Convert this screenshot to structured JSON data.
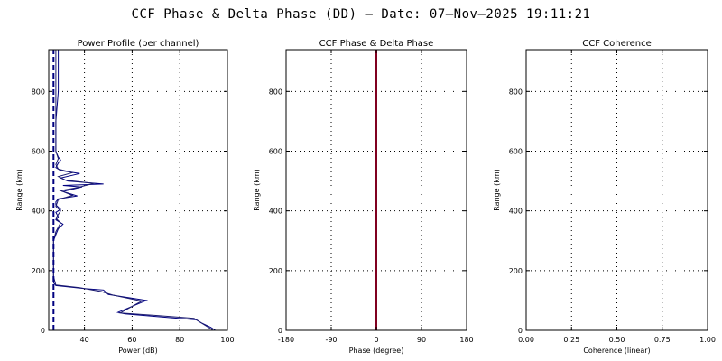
{
  "title": "CCF Phase & Delta Phase (DD) — Date: 07—Nov—2025 19:11:21",
  "chart_data": [
    {
      "type": "line",
      "title": "Power Profile (per channel)",
      "xlabel": "Power (dB)",
      "ylabel": "Range (km)",
      "xlim": [
        25,
        100
      ],
      "ylim": [
        0,
        940
      ],
      "xticks": [
        40,
        60,
        80,
        100
      ],
      "yticks": [
        0,
        200,
        400,
        600,
        800
      ],
      "grid": true,
      "colors": [
        "#000080",
        "#1a1a6e"
      ],
      "series": [
        {
          "style": "solid",
          "points": [
            [
              95,
              0
            ],
            [
              93,
              10
            ],
            [
              89,
              25
            ],
            [
              87,
              35
            ],
            [
              72,
              45
            ],
            [
              57,
              55
            ],
            [
              54,
              60
            ],
            [
              66,
              100
            ],
            [
              50,
              120
            ],
            [
              48,
              135
            ],
            [
              40,
              140
            ],
            [
              28,
              150
            ],
            [
              27,
              160
            ],
            [
              27,
              200
            ],
            [
              27,
              300
            ],
            [
              28,
              320
            ],
            [
              29,
              340
            ],
            [
              31,
              355
            ],
            [
              28,
              370
            ],
            [
              29,
              380
            ],
            [
              28,
              395
            ],
            [
              30,
              405
            ],
            [
              28,
              420
            ],
            [
              28,
              430
            ],
            [
              29,
              440
            ],
            [
              37,
              450
            ],
            [
              31,
              465
            ],
            [
              39,
              480
            ],
            [
              31,
              485
            ],
            [
              48,
              490
            ],
            [
              33,
              500
            ],
            [
              30,
              510
            ],
            [
              38,
              525
            ],
            [
              30,
              535
            ],
            [
              28,
              545
            ],
            [
              29,
              560
            ],
            [
              30,
              570
            ],
            [
              29,
              580
            ],
            [
              28,
              600
            ],
            [
              28,
              700
            ],
            [
              29,
              800
            ],
            [
              29,
              880
            ],
            [
              29,
              940
            ]
          ]
        },
        {
          "style": "solid",
          "points": [
            [
              94,
              0
            ],
            [
              88,
              30
            ],
            [
              86,
              40
            ],
            [
              70,
              50
            ],
            [
              55,
              58
            ],
            [
              64,
              98
            ],
            [
              52,
              118
            ],
            [
              47,
              130
            ],
            [
              38,
              143
            ],
            [
              28,
              152
            ],
            [
              27,
              180
            ],
            [
              27,
              300
            ],
            [
              28,
              330
            ],
            [
              30,
              360
            ],
            [
              28,
              375
            ],
            [
              30,
              400
            ],
            [
              28,
              415
            ],
            [
              29,
              438
            ],
            [
              35,
              452
            ],
            [
              30,
              468
            ],
            [
              37,
              478
            ],
            [
              44,
              492
            ],
            [
              32,
              503
            ],
            [
              29,
              515
            ],
            [
              35,
              528
            ],
            [
              29,
              540
            ],
            [
              28,
              555
            ],
            [
              29,
              575
            ],
            [
              28,
              600
            ],
            [
              28,
              800
            ],
            [
              28,
              940
            ]
          ]
        },
        {
          "style": "dashed",
          "points": [
            [
              27,
              0
            ],
            [
              27,
              940
            ]
          ]
        }
      ]
    },
    {
      "type": "line",
      "title": "CCF Phase & Delta Phase",
      "xlabel": "Phase (degree)",
      "ylabel": "Range (km)",
      "xlim": [
        -180,
        180
      ],
      "ylim": [
        0,
        940
      ],
      "xticks": [
        -180,
        -90,
        0,
        90,
        180
      ],
      "yticks": [
        0,
        200,
        400,
        600,
        800
      ],
      "grid": true,
      "colors": [
        "#800020"
      ],
      "series": [
        {
          "style": "solid",
          "points": [
            [
              0,
              0
            ],
            [
              0,
              940
            ]
          ]
        }
      ]
    },
    {
      "type": "line",
      "title": "CCF Coherence",
      "xlabel": "Coherence (linear)",
      "ylabel": "Range (km)",
      "xlim": [
        0,
        1
      ],
      "ylim": [
        0,
        940
      ],
      "xticks": [
        0.0,
        0.25,
        0.5,
        0.75,
        1.0
      ],
      "xtick_labels": [
        "0.00",
        "0.25",
        "0.50",
        "0.75",
        "1.00"
      ],
      "yticks": [
        0,
        200,
        400,
        600,
        800
      ],
      "grid": true,
      "series": []
    }
  ]
}
